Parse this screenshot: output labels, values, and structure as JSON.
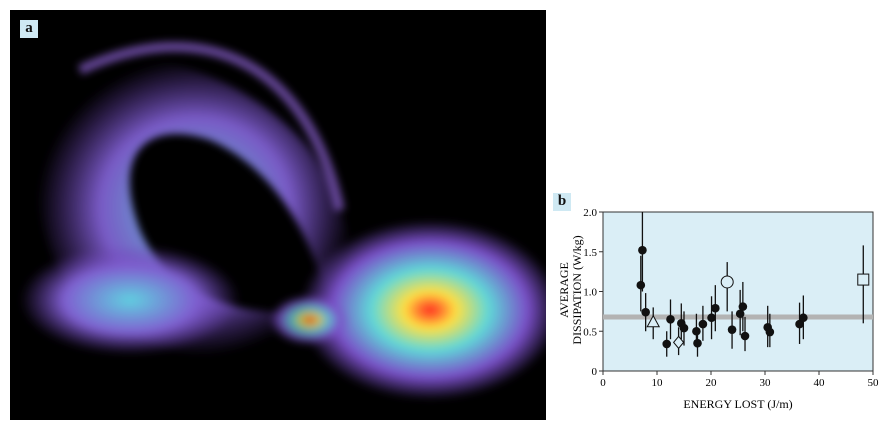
{
  "panel_a": {
    "label": "a"
  },
  "panel_b": {
    "label": "b"
  },
  "chart_data": {
    "type": "scatter",
    "xlabel": "ENERGY LOST (J/m)",
    "ylabel_line1": "AVERAGE",
    "ylabel_line2": "DISSIPATION (W/kg)",
    "xlim": [
      0,
      50
    ],
    "ylim": [
      0,
      2.0
    ],
    "xticks": [
      "0",
      "10",
      "20",
      "30",
      "40",
      "50"
    ],
    "yticks": [
      "0",
      "0.5",
      "1.0",
      "1.5",
      "2.0"
    ],
    "background_color": "#daeef6",
    "reference_line": {
      "y": 0.68,
      "color": "#b3b3b3"
    },
    "points": [
      {
        "x": 7.0,
        "y": 1.08,
        "lo": 0.75,
        "hi": 1.45,
        "marker": "filled-circle"
      },
      {
        "x": 7.3,
        "y": 1.52,
        "lo": 1.0,
        "hi": 2.0,
        "marker": "filled-circle"
      },
      {
        "x": 7.9,
        "y": 0.74,
        "lo": 0.5,
        "hi": 0.98,
        "marker": "filled-circle"
      },
      {
        "x": 9.3,
        "y": 0.62,
        "lo": 0.4,
        "hi": 0.8,
        "marker": "open-triangle"
      },
      {
        "x": 11.8,
        "y": 0.34,
        "lo": 0.18,
        "hi": 0.5,
        "marker": "filled-circle"
      },
      {
        "x": 12.5,
        "y": 0.65,
        "lo": 0.4,
        "hi": 0.9,
        "marker": "filled-circle"
      },
      {
        "x": 14.0,
        "y": 0.36,
        "lo": 0.2,
        "hi": 0.55,
        "marker": "open-diamond"
      },
      {
        "x": 14.5,
        "y": 0.6,
        "lo": 0.4,
        "hi": 0.85,
        "marker": "filled-circle"
      },
      {
        "x": 15.0,
        "y": 0.54,
        "lo": 0.32,
        "hi": 0.75,
        "marker": "filled-circle"
      },
      {
        "x": 17.3,
        "y": 0.5,
        "lo": 0.3,
        "hi": 0.72,
        "marker": "filled-circle"
      },
      {
        "x": 17.5,
        "y": 0.35,
        "lo": 0.18,
        "hi": 0.55,
        "marker": "filled-circle"
      },
      {
        "x": 18.5,
        "y": 0.59,
        "lo": 0.38,
        "hi": 0.82,
        "marker": "filled-circle"
      },
      {
        "x": 20.1,
        "y": 0.67,
        "lo": 0.4,
        "hi": 0.94,
        "marker": "filled-circle"
      },
      {
        "x": 20.8,
        "y": 0.79,
        "lo": 0.5,
        "hi": 1.08,
        "marker": "filled-circle"
      },
      {
        "x": 23.0,
        "y": 1.12,
        "lo": 0.75,
        "hi": 1.37,
        "marker": "open-circle"
      },
      {
        "x": 23.9,
        "y": 0.52,
        "lo": 0.28,
        "hi": 0.75,
        "marker": "filled-circle"
      },
      {
        "x": 25.4,
        "y": 0.72,
        "lo": 0.45,
        "hi": 1.02,
        "marker": "filled-circle"
      },
      {
        "x": 25.9,
        "y": 0.81,
        "lo": 0.5,
        "hi": 1.12,
        "marker": "filled-circle"
      },
      {
        "x": 26.3,
        "y": 0.44,
        "lo": 0.25,
        "hi": 0.68,
        "marker": "filled-circle"
      },
      {
        "x": 30.5,
        "y": 0.55,
        "lo": 0.3,
        "hi": 0.82,
        "marker": "filled-circle"
      },
      {
        "x": 30.9,
        "y": 0.49,
        "lo": 0.3,
        "hi": 0.72,
        "marker": "filled-circle"
      },
      {
        "x": 36.4,
        "y": 0.59,
        "lo": 0.34,
        "hi": 0.86,
        "marker": "filled-circle"
      },
      {
        "x": 37.1,
        "y": 0.67,
        "lo": 0.4,
        "hi": 0.95,
        "marker": "filled-circle"
      },
      {
        "x": 48.2,
        "y": 1.15,
        "lo": 0.6,
        "hi": 1.58,
        "marker": "open-square"
      }
    ]
  }
}
